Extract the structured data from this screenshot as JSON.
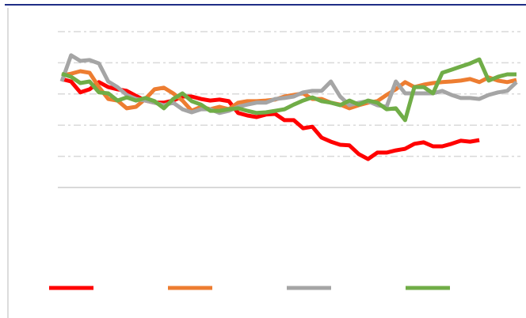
{
  "chart_data": {
    "type": "line",
    "categories": [
      null,
      null,
      null,
      null,
      null,
      null,
      null,
      null,
      null,
      null,
      null,
      null,
      null,
      null,
      null,
      null,
      null,
      null,
      null,
      null,
      null,
      null,
      null,
      null,
      null,
      null,
      null,
      null,
      null,
      null,
      null,
      null,
      null,
      null,
      null,
      null,
      null,
      null,
      null,
      null,
      null,
      null,
      null,
      null,
      null,
      null,
      null,
      null,
      null,
      null
    ],
    "series": [
      {
        "color": "#ff0000",
        "values": [
          3.48,
          3.4,
          3.05,
          3.15,
          3.38,
          3.22,
          3.15,
          3.1,
          2.94,
          2.79,
          2.72,
          2.72,
          2.79,
          2.92,
          2.92,
          2.84,
          2.79,
          2.82,
          2.77,
          2.39,
          2.31,
          2.26,
          2.34,
          2.36,
          2.16,
          2.16,
          1.9,
          1.95,
          1.6,
          1.47,
          1.37,
          1.35,
          1.07,
          0.91,
          1.12,
          1.12,
          1.19,
          1.24,
          1.4,
          1.45,
          1.32,
          1.32,
          1.4,
          1.5,
          1.47,
          1.52,
          null,
          null,
          null,
          null
        ]
      },
      {
        "color": "#ed7d31",
        "values": [
          3.6,
          3.65,
          3.73,
          3.68,
          3.22,
          2.84,
          2.79,
          2.54,
          2.59,
          2.84,
          3.15,
          3.2,
          3.02,
          2.79,
          2.46,
          2.59,
          2.51,
          2.59,
          2.51,
          2.72,
          2.77,
          2.77,
          2.79,
          2.82,
          2.92,
          2.97,
          3.02,
          2.84,
          2.84,
          2.72,
          2.66,
          2.54,
          2.64,
          2.72,
          2.77,
          2.97,
          3.15,
          3.38,
          3.22,
          3.3,
          3.35,
          3.38,
          3.4,
          3.43,
          3.48,
          3.38,
          3.53,
          3.43,
          3.38,
          3.45
        ]
      },
      {
        "color": "#a5a5a5",
        "values": [
          3.4,
          4.24,
          4.06,
          4.09,
          3.98,
          3.4,
          3.22,
          2.97,
          2.84,
          2.79,
          2.72,
          2.64,
          2.72,
          2.51,
          2.41,
          2.51,
          2.51,
          2.39,
          2.46,
          2.59,
          2.66,
          2.72,
          2.72,
          2.84,
          2.87,
          2.92,
          3.05,
          3.1,
          3.1,
          3.4,
          2.92,
          2.64,
          2.72,
          2.77,
          2.64,
          2.59,
          3.4,
          3.02,
          3.02,
          3.02,
          3.02,
          3.1,
          2.97,
          2.87,
          2.87,
          2.84,
          2.97,
          3.05,
          3.1,
          3.38
        ]
      },
      {
        "color": "#70ad47",
        "values": [
          3.65,
          3.55,
          3.35,
          3.4,
          3.05,
          3.02,
          2.79,
          2.89,
          2.79,
          2.87,
          2.77,
          2.54,
          2.84,
          3.02,
          2.77,
          2.66,
          2.46,
          2.46,
          2.51,
          2.54,
          2.46,
          2.39,
          2.41,
          2.46,
          2.51,
          2.66,
          2.79,
          2.89,
          2.77,
          2.72,
          2.64,
          2.79,
          2.66,
          2.79,
          2.72,
          2.51,
          2.54,
          2.16,
          3.22,
          3.22,
          3.02,
          3.68,
          3.78,
          3.88,
          3.98,
          4.11,
          3.43,
          3.55,
          3.63,
          3.63
        ]
      }
    ],
    "ylim": [
      0,
      5
    ],
    "yticks": [
      0,
      1,
      2,
      3,
      4,
      5
    ],
    "grid": true
  }
}
